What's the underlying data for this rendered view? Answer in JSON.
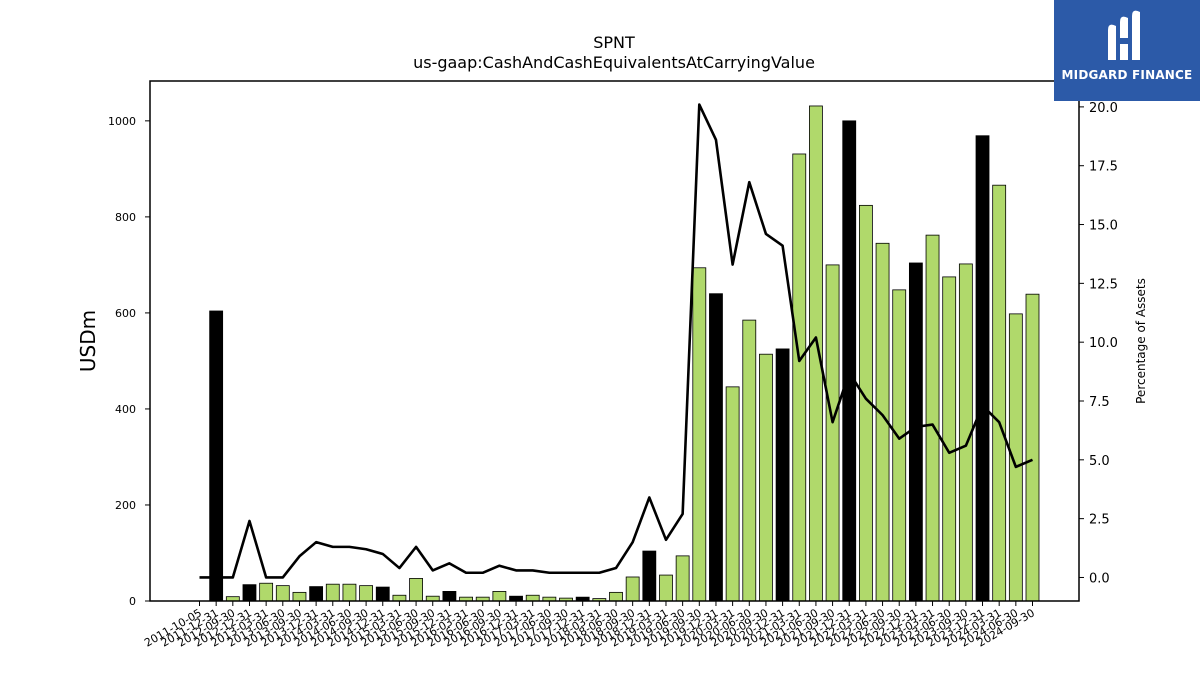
{
  "brand": {
    "name": "MIDGARD FINANCE",
    "icon": "midgard-logo-icon",
    "color": "#2c5aa8"
  },
  "chart_data": {
    "type": "bar",
    "title": "SPNT",
    "subtitle": "us-gaap:CashAndCashEquivalentsAtCarryingValue",
    "ylabel": "USDm",
    "y2label": "Percentage of Assets",
    "ylim": [
      0,
      1083
    ],
    "y2lim": [
      -1.0,
      21.1
    ],
    "yticks": [
      "0",
      "200",
      "400",
      "600",
      "800",
      "1000"
    ],
    "y2ticks": [
      "0.0",
      "2.5",
      "5.0",
      "7.5",
      "10.0",
      "12.5",
      "15.0",
      "17.5",
      "20.0"
    ],
    "grid": false,
    "colors": {
      "q4_bar": "#000000",
      "other_bar": "#b0d96b",
      "line": "#000000"
    },
    "categories": [
      "2011-10-05",
      "2011-12-31",
      "2012-09-30",
      "2012-12-31",
      "2013-03-31",
      "2013-06-30",
      "2013-09-30",
      "2013-12-31",
      "2014-03-31",
      "2014-06-30",
      "2014-09-30",
      "2014-12-31",
      "2015-03-31",
      "2015-06-30",
      "2015-09-30",
      "2015-12-31",
      "2016-03-31",
      "2016-06-30",
      "2016-09-30",
      "2016-12-31",
      "2017-03-31",
      "2017-06-30",
      "2017-09-30",
      "2017-12-31",
      "2018-03-31",
      "2018-06-30",
      "2018-09-30",
      "2018-12-31",
      "2019-03-31",
      "2019-06-30",
      "2019-09-30",
      "2019-12-31",
      "2020-03-31",
      "2020-06-30",
      "2020-09-30",
      "2020-12-31",
      "2021-03-31",
      "2021-06-30",
      "2021-09-30",
      "2021-12-31",
      "2022-03-31",
      "2022-06-30",
      "2022-09-30",
      "2022-12-31",
      "2023-03-31",
      "2023-06-30",
      "2023-09-30",
      "2023-12-31",
      "2024-03-31",
      "2024-06-30",
      "2024-09-30"
    ],
    "series": [
      {
        "name": "USDm",
        "values": [
          0,
          604,
          9,
          34,
          37,
          32,
          18,
          30,
          35,
          35,
          32,
          29,
          12,
          47,
          10,
          20,
          8,
          8,
          20,
          10,
          12,
          8,
          6,
          8,
          5,
          18,
          50,
          104,
          54,
          94,
          694,
          640,
          446,
          585,
          514,
          525,
          931,
          1031,
          700,
          1000,
          824,
          745,
          648,
          704,
          762,
          675,
          702,
          969,
          866,
          598,
          639
        ]
      },
      {
        "name": "Percentage of Assets",
        "values": [
          0.0,
          0.0,
          0.0,
          2.4,
          0.0,
          0.0,
          0.9,
          1.5,
          1.3,
          1.3,
          1.2,
          1.0,
          0.4,
          1.3,
          0.3,
          0.6,
          0.2,
          0.2,
          0.5,
          0.3,
          0.3,
          0.2,
          0.2,
          0.2,
          0.2,
          0.4,
          1.5,
          3.4,
          1.6,
          2.7,
          20.1,
          18.6,
          13.3,
          16.8,
          14.6,
          14.1,
          9.2,
          10.2,
          6.6,
          8.7,
          7.6,
          6.9,
          5.9,
          6.4,
          6.5,
          5.3,
          5.6,
          7.3,
          6.6,
          4.7,
          5.0
        ]
      }
    ],
    "q4_flags": [
      1,
      1,
      0,
      1,
      0,
      0,
      0,
      1,
      0,
      0,
      0,
      1,
      0,
      0,
      0,
      1,
      0,
      0,
      0,
      1,
      0,
      0,
      0,
      1,
      0,
      0,
      0,
      1,
      0,
      0,
      0,
      1,
      0,
      0,
      0,
      1,
      0,
      0,
      0,
      1,
      0,
      0,
      0,
      1,
      0,
      0,
      0,
      1,
      0,
      0,
      0
    ]
  }
}
